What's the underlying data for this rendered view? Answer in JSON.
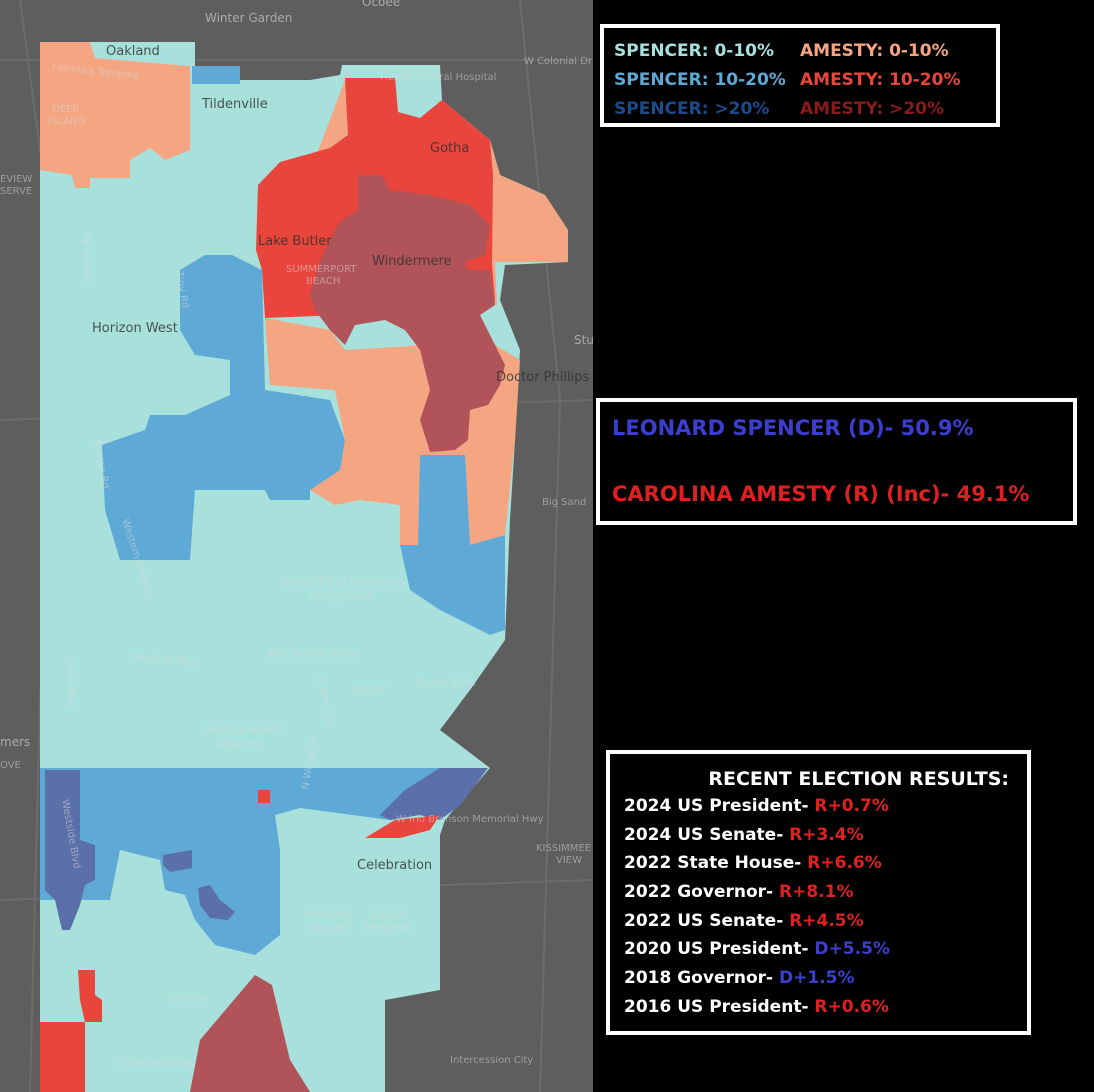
{
  "legend": {
    "items": [
      {
        "label": "SPENCER: 0-10%",
        "color": "#a8e0dc"
      },
      {
        "label": "AMESTY: 0-10%",
        "color": "#f4a582"
      },
      {
        "label": "SPENCER: 10-20%",
        "color": "#5fa9d6"
      },
      {
        "label": "AMESTY: 10-20%",
        "color": "#e8453c"
      },
      {
        "label": "SPENCER: >20%",
        "color": "#1a4b8c"
      },
      {
        "label": "AMESTY: >20%",
        "color": "#8b1a1a"
      }
    ]
  },
  "result": {
    "dem_line": "LEONARD SPENCER (D)- 50.9%",
    "rep_line": "CAROLINA AMESTY (R) (Inc)- 49.1%",
    "dem_color": "#3b3fd1",
    "rep_color": "#e02020"
  },
  "recent": {
    "title": "RECENT ELECTION RESULTS:",
    "rows": [
      {
        "race": "2024 US President- ",
        "margin": "R+0.7%",
        "party": "R"
      },
      {
        "race": "2024 US Senate- ",
        "margin": "R+3.4%",
        "party": "R"
      },
      {
        "race": "2022 State House- ",
        "margin": "R+6.6%",
        "party": "R"
      },
      {
        "race": "2022 Governor- ",
        "margin": "R+8.1%",
        "party": "R"
      },
      {
        "race": "2022 US Senate- ",
        "margin": "R+4.5%",
        "party": "R"
      },
      {
        "race": "2020 US President- ",
        "margin": "D+5.5%",
        "party": "D"
      },
      {
        "race": "2018 Governor- ",
        "margin": "D+1.5%",
        "party": "D"
      },
      {
        "race": "2016 US President- ",
        "margin": "R+0.6%",
        "party": "R"
      }
    ]
  },
  "map": {
    "places": {
      "winter_garden": "Winter Garden",
      "ocoee": "Ocoee",
      "oakland": "Oakland",
      "floridas_turnpike": "Florida's Turnpike",
      "health_central": "Health Central Hospital",
      "colonial_dr": "W Colonial Dr",
      "tildenville": "Tildenville",
      "deer": "DEER",
      "island": "ISLAND",
      "review": "EVIEW",
      "serve": "SERVE",
      "gotha": "Gotha",
      "lake_butler": "Lake Butler",
      "windermere": "Windermere",
      "summerport": "SUMMERPORT",
      "beach": "BEACH",
      "avalon_rd": "Avalon Rd",
      "tiny_rd": "Tiny Rd",
      "horizon_west": "Horizon West",
      "stu": "Stu",
      "doctor_phillips": "Doctor Phillips",
      "big_sand": "Big Sand",
      "western_beltway": "Western Beltway",
      "fort_wilderness": "Disney's Fort Wilderness",
      "campground": "Campground",
      "western_way": "Western Way",
      "walt_disney_world": "Walt Disney World",
      "epcot": "EPCOT",
      "buena_vista": "Buena Vista",
      "world_dr": "N World Dr",
      "animal": "Disney's Animal",
      "kingdom": "Kingdom",
      "mers": "mers",
      "ove": "OVE",
      "irlo": "W Irlo Bronson Memorial Hwy",
      "kissimmee": "KISSIMMEE",
      "view": "VIEW",
      "celebration": "Celebration",
      "evander": "EVANDER",
      "square": "SQUARE",
      "aquila": "AQUILA",
      "reserve": "RESERVE",
      "reunion": "Reunion",
      "championsgate": "ChampionsGate",
      "intercession": "Intercession City",
      "westside": "Westside Blvd"
    }
  }
}
